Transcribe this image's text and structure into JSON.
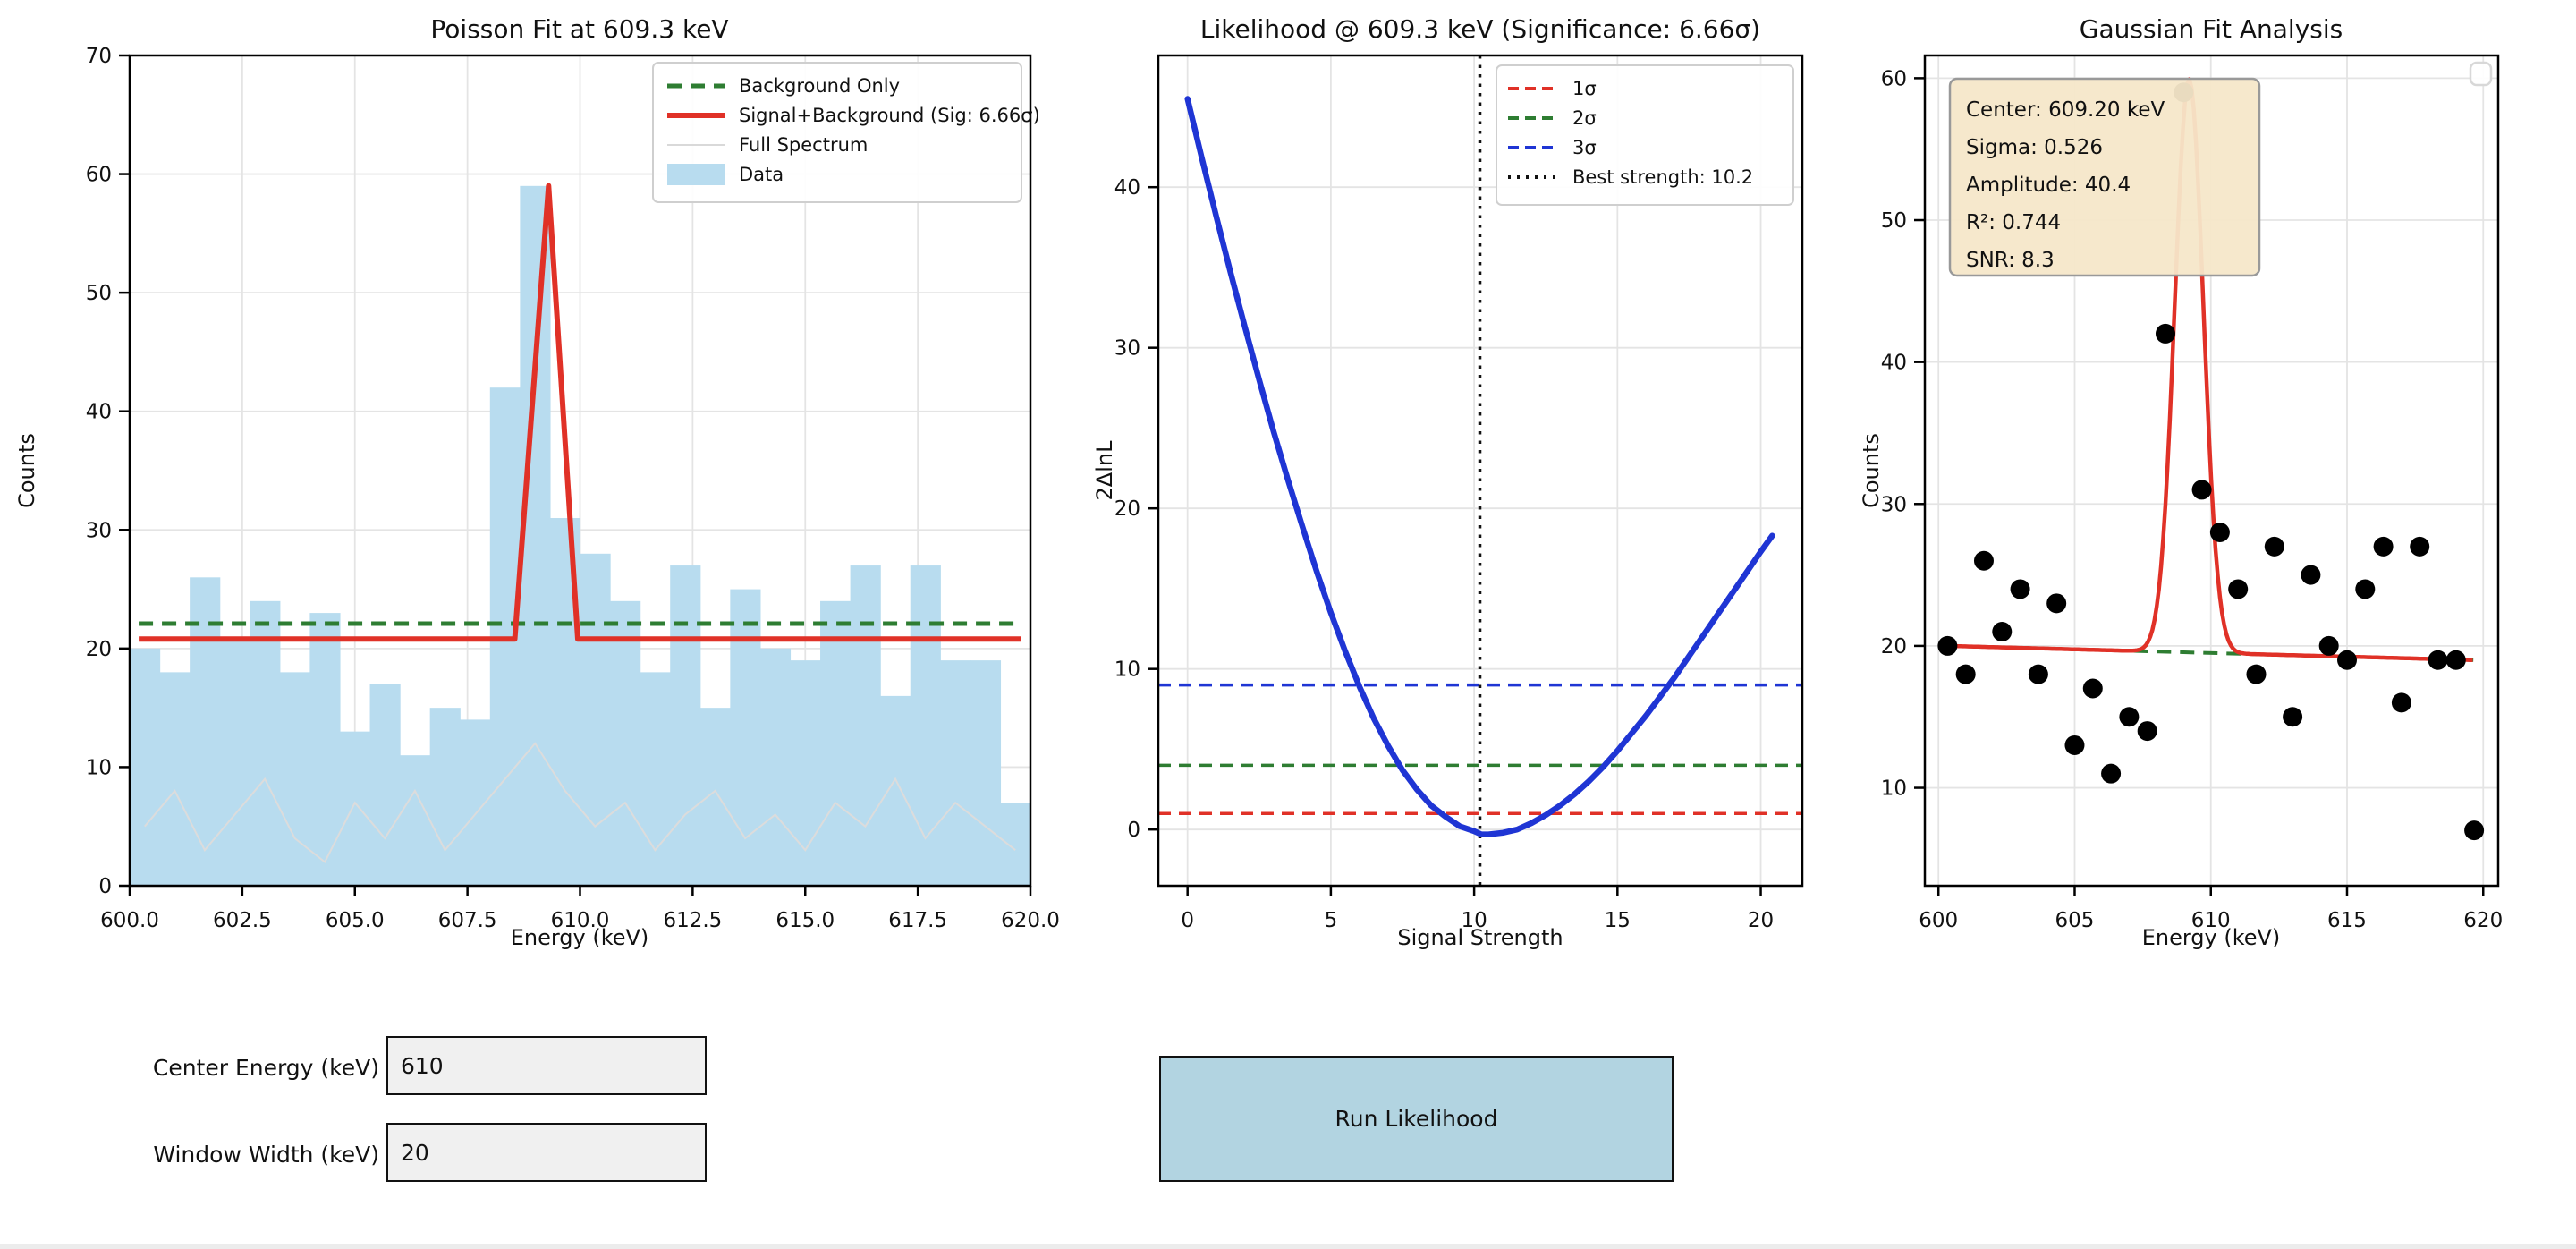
{
  "page": {
    "background": "#ffffff"
  },
  "colors": {
    "red": "#e03127",
    "green": "#2e7d32",
    "blue": "#1f35d4",
    "bar_fill": "#b8dcef",
    "gray_line": "#dcdcdc",
    "grid": "#e4e4e4",
    "info_bg": "#f5e7c9",
    "info_border": "#999999",
    "button_bg": "#b2d4e1",
    "textbox_bg": "#f0f0f0",
    "dot": "#000000"
  },
  "chart_data": [
    {
      "type": "bar",
      "title": "Poisson Fit at 609.3 keV",
      "xlabel": "Energy (keV)",
      "ylabel": "Counts",
      "xlim": [
        600,
        620
      ],
      "ylim": [
        0,
        70
      ],
      "xtick_values": [
        600,
        602.5,
        605,
        607.5,
        610,
        612.5,
        615,
        617.5,
        620
      ],
      "xtick_labels": [
        "600.0",
        "602.5",
        "605.0",
        "607.5",
        "610.0",
        "612.5",
        "615.0",
        "617.5",
        "620.0"
      ],
      "ytick_values": [
        0,
        10,
        20,
        30,
        40,
        50,
        60,
        70
      ],
      "bin_start": 600,
      "bin_width": 0.666667,
      "values": [
        20,
        18,
        26,
        21,
        24,
        18,
        23,
        13,
        17,
        11,
        15,
        14,
        42,
        59,
        31,
        28,
        24,
        18,
        27,
        15,
        25,
        20,
        19,
        24,
        27,
        16,
        27,
        19,
        19,
        7
      ],
      "background_level": 22.1,
      "signal_line": [
        [
          600.2,
          20.8
        ],
        [
          608.55,
          20.8
        ],
        [
          609.3,
          59
        ],
        [
          609.95,
          20.8
        ],
        [
          619.8,
          20.8
        ]
      ],
      "full_spectrum": [
        5,
        8,
        3,
        6,
        9,
        4,
        2,
        7,
        4,
        8,
        3,
        6,
        9,
        12,
        8,
        5,
        7,
        3,
        6,
        8,
        4,
        6,
        3,
        7,
        5,
        9,
        4,
        7,
        5,
        3
      ],
      "legend": [
        {
          "label": "Background Only",
          "color": "#2e7d32",
          "style": "dashed"
        },
        {
          "label": "Signal+Background (Sig: 6.66σ)",
          "color": "#e03127",
          "style": "solid"
        },
        {
          "label": "Full Spectrum",
          "color": "#d9d9d9",
          "style": "thin"
        },
        {
          "label": "Data",
          "color": "#b8dcef",
          "style": "patch"
        }
      ]
    },
    {
      "type": "line",
      "title": "Likelihood @ 609.3 keV (Significance: 6.66σ)",
      "xlabel": "Signal Strength",
      "ylabel": "2ΔlnL",
      "xlim": [
        -1.02,
        21.45
      ],
      "ylim": [
        -3.5,
        48.2
      ],
      "xtick_values": [
        0,
        5,
        10,
        15,
        20
      ],
      "xtick_labels": [
        "0",
        "5",
        "10",
        "15",
        "20"
      ],
      "ytick_values": [
        0,
        10,
        20,
        30,
        40
      ],
      "curve": [
        [
          0,
          45.5
        ],
        [
          0.5,
          41.8
        ],
        [
          1,
          38.2
        ],
        [
          1.5,
          34.7
        ],
        [
          2,
          31.3
        ],
        [
          2.5,
          28.0
        ],
        [
          3,
          24.8
        ],
        [
          3.5,
          21.8
        ],
        [
          4,
          18.9
        ],
        [
          4.5,
          16.1
        ],
        [
          5,
          13.5
        ],
        [
          5.5,
          11.1
        ],
        [
          6,
          8.9
        ],
        [
          6.5,
          6.9
        ],
        [
          7,
          5.2
        ],
        [
          7.5,
          3.7
        ],
        [
          8,
          2.5
        ],
        [
          8.5,
          1.5
        ],
        [
          9,
          0.8
        ],
        [
          9.5,
          0.2
        ],
        [
          10,
          -0.1
        ],
        [
          10.25,
          -0.3
        ],
        [
          10.5,
          -0.3
        ],
        [
          11,
          -0.2
        ],
        [
          11.5,
          0.0
        ],
        [
          12,
          0.4
        ],
        [
          12.5,
          0.9
        ],
        [
          13,
          1.5
        ],
        [
          13.5,
          2.2
        ],
        [
          14,
          3.0
        ],
        [
          14.5,
          3.9
        ],
        [
          15,
          4.9
        ],
        [
          15.5,
          6.0
        ],
        [
          16,
          7.1
        ],
        [
          16.5,
          8.3
        ],
        [
          17,
          9.5
        ],
        [
          17.5,
          10.8
        ],
        [
          18,
          12.1
        ],
        [
          18.5,
          13.4
        ],
        [
          19,
          14.7
        ],
        [
          19.5,
          16.0
        ],
        [
          20,
          17.3
        ],
        [
          20.4,
          18.3
        ]
      ],
      "sigma_lines": [
        {
          "label": "1σ",
          "y": 1,
          "color": "#e03127"
        },
        {
          "label": "2σ",
          "y": 4,
          "color": "#2e7d32"
        },
        {
          "label": "3σ",
          "y": 9,
          "color": "#1f35d4"
        }
      ],
      "best_strength": 10.2,
      "legend_best_label": "Best strength: 10.2"
    },
    {
      "type": "scatter",
      "title": "Gaussian Fit Analysis",
      "xlabel": "Energy (keV)",
      "ylabel": "Counts",
      "xlim": [
        599.5,
        620.55
      ],
      "ylim": [
        3.1,
        61.6
      ],
      "xtick_values": [
        600,
        605,
        610,
        615,
        620
      ],
      "xtick_labels": [
        "600",
        "605",
        "610",
        "615",
        "620"
      ],
      "ytick_values": [
        10,
        20,
        30,
        40,
        50,
        60
      ],
      "x_start": 600.3333,
      "x_step": 0.666667,
      "values": [
        20,
        18,
        26,
        21,
        24,
        18,
        23,
        13,
        17,
        11,
        15,
        14,
        42,
        59,
        31,
        28,
        24,
        18,
        27,
        15,
        25,
        20,
        19,
        24,
        27,
        16,
        27,
        19,
        19,
        7
      ],
      "fit": {
        "center": 609.2,
        "sigma": 0.526,
        "amplitude": 40.4,
        "base_left": 20.0,
        "base_right": 19.0,
        "x_min": 600.3333,
        "x_max": 619.6667
      },
      "info_lines": [
        "Center: 609.20 keV",
        "Sigma: 0.526",
        "Amplitude: 40.4",
        "R²: 0.744",
        "SNR: 8.3"
      ]
    }
  ],
  "controls": {
    "fields": [
      {
        "label": "Center Energy (keV)",
        "value": "610"
      },
      {
        "label": "Window Width (keV)",
        "value": "20"
      }
    ],
    "button": {
      "label": "Run Likelihood"
    }
  }
}
